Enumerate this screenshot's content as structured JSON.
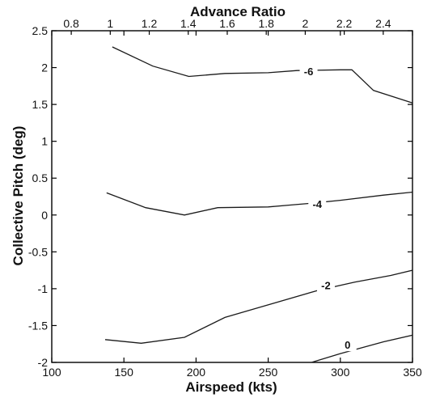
{
  "chart_data": {
    "type": "line",
    "xlabel": "Airspeed (kts)",
    "ylabel": "Collective Pitch (deg)",
    "x2label": "Advance Ratio",
    "xlim": [
      100,
      350
    ],
    "ylim": [
      -2,
      2.5
    ],
    "x2lim": [
      0.7,
      2.55
    ],
    "x_ticks": [
      100,
      150,
      200,
      250,
      300,
      350
    ],
    "y_ticks": [
      -2,
      -1.5,
      -1,
      -0.5,
      0,
      0.5,
      1,
      1.5,
      2,
      2.5
    ],
    "y_tick_labels": [
      "-2",
      "-1.5",
      "-1",
      "-0.5",
      "0",
      "0.5",
      "1",
      "1.5",
      "2",
      "2.5"
    ],
    "x2_ticks": [
      0.8,
      1,
      1.2,
      1.4,
      1.6,
      1.8,
      2,
      2.2,
      2.4
    ],
    "x2_tick_labels": [
      "0.8",
      "1",
      "1.2",
      "1.4",
      "1.6",
      "1.8",
      "2",
      "2.2",
      "2.4"
    ],
    "grid": false,
    "series": [
      {
        "label": "-6",
        "label_at": [
          278,
          1.95
        ],
        "points": [
          [
            142,
            2.28
          ],
          [
            170,
            2.02
          ],
          [
            195,
            1.88
          ],
          [
            220,
            1.92
          ],
          [
            250,
            1.93
          ],
          [
            270,
            1.96
          ],
          [
            300,
            1.97
          ],
          [
            308,
            1.97
          ],
          [
            323,
            1.69
          ],
          [
            350,
            1.52
          ]
        ]
      },
      {
        "label": "-4",
        "label_at": [
          284,
          0.15
        ],
        "points": [
          [
            138,
            0.3
          ],
          [
            165,
            0.1
          ],
          [
            192,
            0.0
          ],
          [
            215,
            0.1
          ],
          [
            250,
            0.11
          ],
          [
            280,
            0.16
          ],
          [
            300,
            0.2
          ],
          [
            330,
            0.27
          ],
          [
            350,
            0.31
          ]
        ]
      },
      {
        "label": "-2",
        "label_at": [
          290,
          -0.95
        ],
        "points": [
          [
            137,
            -1.69
          ],
          [
            162,
            -1.74
          ],
          [
            192,
            -1.66
          ],
          [
            220,
            -1.39
          ],
          [
            255,
            -1.19
          ],
          [
            285,
            -1.02
          ],
          [
            310,
            -0.91
          ],
          [
            335,
            -0.82
          ],
          [
            350,
            -0.75
          ]
        ]
      },
      {
        "label": "0",
        "label_at": [
          305,
          -1.76
        ],
        "points": [
          [
            280,
            -2.0
          ],
          [
            300,
            -1.88
          ],
          [
            330,
            -1.72
          ],
          [
            350,
            -1.63
          ]
        ]
      }
    ]
  }
}
